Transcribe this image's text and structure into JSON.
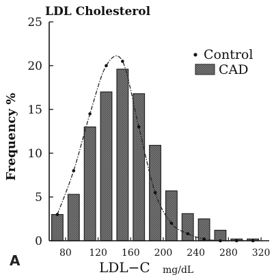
{
  "chart_data": {
    "type": "bar",
    "title": "LDL Cholesterol",
    "ylabel": "Frequency %",
    "xlabel_main": "LDL−C",
    "xlabel_unit": "mg/dL",
    "ylim": [
      0,
      25
    ],
    "yticks": [
      0,
      5,
      10,
      15,
      20,
      25
    ],
    "xlim": [
      60,
      330
    ],
    "xticks": [
      80,
      120,
      160,
      200,
      240,
      280,
      320
    ],
    "bar_width": 14,
    "panel_label": "A",
    "legend": {
      "position": "top-right",
      "entries": [
        {
          "label": "Control",
          "marker": "dot"
        },
        {
          "label": "CAD",
          "marker": "bar"
        }
      ]
    },
    "series": [
      {
        "name": "CAD",
        "type": "bar",
        "color": "#6f6f6f",
        "x": [
          70,
          90,
          110,
          130,
          150,
          170,
          190,
          210,
          230,
          250,
          270,
          290,
          310
        ],
        "values": [
          3.0,
          5.3,
          13.0,
          17.0,
          19.6,
          16.8,
          10.9,
          5.7,
          3.1,
          2.5,
          1.2,
          0.2,
          0.2
        ]
      },
      {
        "name": "Control",
        "type": "line",
        "color": "#222222",
        "x": [
          70,
          90,
          110,
          130,
          150,
          170,
          190,
          210,
          230,
          250,
          270,
          290,
          310
        ],
        "values": [
          3.0,
          8.0,
          14.5,
          20.0,
          20.5,
          13.0,
          5.5,
          2.0,
          0.8,
          0.2,
          0.0,
          0.0,
          0.0
        ]
      }
    ]
  }
}
